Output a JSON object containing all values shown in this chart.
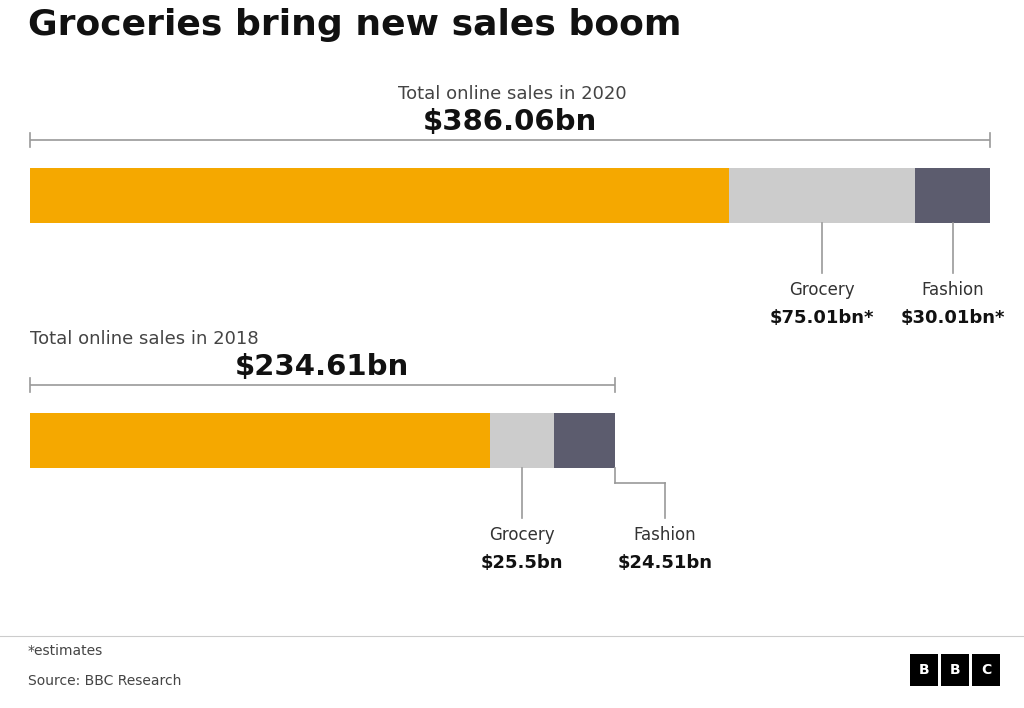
{
  "title": "Groceries bring new sales boom",
  "title_fontsize": 26,
  "background_color": "#ffffff",
  "total_max": 386.06,
  "bar2020": {
    "year_label": "Total online sales in 2020",
    "total": 386.06,
    "total_label": "$386.06bn",
    "other": 281.04,
    "grocery": 75.01,
    "fashion": 30.01
  },
  "bar2018": {
    "year_label": "Total online sales in 2018",
    "total": 234.61,
    "total_label": "$234.61bn",
    "other": 185.1,
    "grocery": 25.5,
    "fashion": 24.51
  },
  "color_other": "#F5A800",
  "color_grocery": "#CCCCCC",
  "color_fashion": "#5C5C6E",
  "color_line": "#999999",
  "color_text_dark": "#111111",
  "color_text_mid": "#444444",
  "source_text": "Source: BBC Research",
  "estimates_text": "*estimates",
  "bbc_box_color": "#000000",
  "bbc_text_color": "#ffffff"
}
